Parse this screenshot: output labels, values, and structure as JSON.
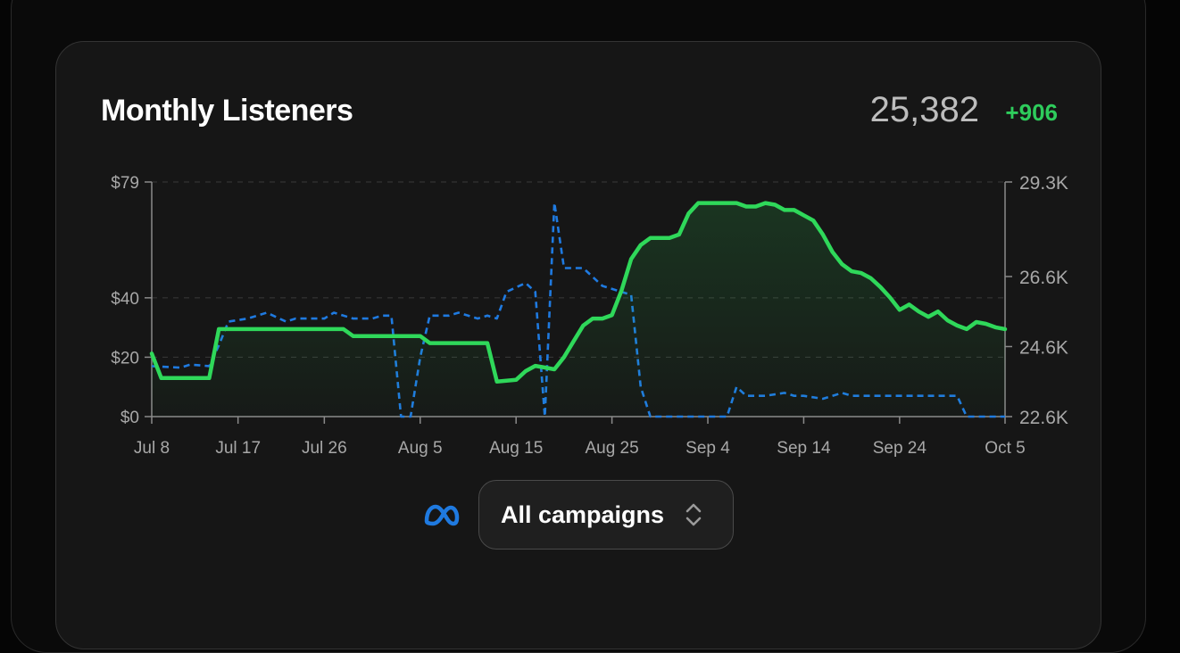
{
  "card": {
    "title": "Monthly Listeners",
    "value": "25,382",
    "delta": "+906"
  },
  "colors": {
    "listeners_line": "#2fd85a",
    "spend_line": "#1f7ae0",
    "delta_text": "#2ecc5c"
  },
  "controls": {
    "platform_icon": "meta-icon",
    "campaign_label": "All campaigns",
    "selector_icon": "chevron-up-down-icon"
  },
  "chart_data": {
    "type": "line",
    "x_ticks": [
      "Jul 8",
      "Jul 17",
      "Jul 26",
      "Aug 5",
      "Aug 15",
      "Aug 25",
      "Sep 4",
      "Sep 14",
      "Sep 24",
      "Oct 5"
    ],
    "y_left_ticks": [
      "$0",
      "$20",
      "$40",
      "$79"
    ],
    "y_right_ticks": [
      "22.6K",
      "24.6K",
      "26.6K",
      "29.3K"
    ],
    "y_left_range": [
      0,
      79
    ],
    "y_right_range": [
      22600,
      29300
    ],
    "grid": "dashed horizontal",
    "series": [
      {
        "axis": "right",
        "style": "solid",
        "points": [
          [
            "Jul 8",
            24400
          ],
          [
            "Jul 9",
            23700
          ],
          [
            "Jul 10",
            23700
          ],
          [
            "Jul 12",
            23700
          ],
          [
            "Jul 14",
            23700
          ],
          [
            "Jul 15",
            25100
          ],
          [
            "Jul 17",
            25100
          ],
          [
            "Jul 20",
            25100
          ],
          [
            "Jul 23",
            25100
          ],
          [
            "Jul 26",
            25100
          ],
          [
            "Jul 28",
            25100
          ],
          [
            "Jul 29",
            24900
          ],
          [
            "Aug 1",
            24900
          ],
          [
            "Aug 4",
            24900
          ],
          [
            "Aug 5",
            24900
          ],
          [
            "Aug 6",
            24700
          ],
          [
            "Aug 9",
            24700
          ],
          [
            "Aug 12",
            24700
          ],
          [
            "Aug 13",
            23600
          ],
          [
            "Aug 15",
            23650
          ],
          [
            "Aug 16",
            23900
          ],
          [
            "Aug 17",
            24050
          ],
          [
            "Aug 18",
            24000
          ],
          [
            "Aug 19",
            23950
          ],
          [
            "Aug 20",
            24300
          ],
          [
            "Aug 21",
            24750
          ],
          [
            "Aug 22",
            25200
          ],
          [
            "Aug 23",
            25400
          ],
          [
            "Aug 24",
            25400
          ],
          [
            "Aug 25",
            25500
          ],
          [
            "Aug 26",
            26200
          ],
          [
            "Aug 27",
            27100
          ],
          [
            "Aug 28",
            27500
          ],
          [
            "Aug 29",
            27700
          ],
          [
            "Aug 31",
            27700
          ],
          [
            "Sep 1",
            27800
          ],
          [
            "Sep 2",
            28400
          ],
          [
            "Sep 3",
            28700
          ],
          [
            "Sep 5",
            28700
          ],
          [
            "Sep 7",
            28700
          ],
          [
            "Sep 8",
            28600
          ],
          [
            "Sep 9",
            28600
          ],
          [
            "Sep 10",
            28700
          ],
          [
            "Sep 11",
            28650
          ],
          [
            "Sep 12",
            28500
          ],
          [
            "Sep 13",
            28500
          ],
          [
            "Sep 14",
            28350
          ],
          [
            "Sep 15",
            28200
          ],
          [
            "Sep 16",
            27800
          ],
          [
            "Sep 17",
            27300
          ],
          [
            "Sep 18",
            26950
          ],
          [
            "Sep 19",
            26750
          ],
          [
            "Sep 20",
            26700
          ],
          [
            "Sep 21",
            26550
          ],
          [
            "Sep 22",
            26300
          ],
          [
            "Sep 23",
            26000
          ],
          [
            "Sep 24",
            25650
          ],
          [
            "Sep 25",
            25800
          ],
          [
            "Sep 26",
            25600
          ],
          [
            "Sep 27",
            25450
          ],
          [
            "Sep 28",
            25600
          ],
          [
            "Sep 29",
            25350
          ],
          [
            "Sep 30",
            25200
          ],
          [
            "Oct 1",
            25100
          ],
          [
            "Oct 2",
            25300
          ],
          [
            "Oct 3",
            25250
          ],
          [
            "Oct 4",
            25150
          ],
          [
            "Oct 5",
            25100
          ]
        ]
      },
      {
        "axis": "left",
        "style": "dashed",
        "points": [
          [
            "Jul 8",
            17
          ],
          [
            "Jul 11",
            16.5
          ],
          [
            "Jul 12",
            17.5
          ],
          [
            "Jul 14",
            17
          ],
          [
            "Jul 15",
            24
          ],
          [
            "Jul 16",
            32
          ],
          [
            "Jul 18",
            33
          ],
          [
            "Jul 20",
            35
          ],
          [
            "Jul 22",
            32
          ],
          [
            "Jul 23",
            33
          ],
          [
            "Jul 26",
            33
          ],
          [
            "Jul 27",
            35
          ],
          [
            "Jul 29",
            33
          ],
          [
            "Jul 31",
            33
          ],
          [
            "Aug 1",
            34
          ],
          [
            "Aug 2",
            34
          ],
          [
            "Aug 3",
            0
          ],
          [
            "Aug 4",
            0
          ],
          [
            "Aug 5",
            20
          ],
          [
            "Aug 6",
            34
          ],
          [
            "Aug 8",
            34
          ],
          [
            "Aug 9",
            35
          ],
          [
            "Aug 11",
            33
          ],
          [
            "Aug 12",
            34
          ],
          [
            "Aug 13",
            33
          ],
          [
            "Aug 14",
            42
          ],
          [
            "Aug 16",
            45
          ],
          [
            "Aug 17",
            42
          ],
          [
            "Aug 18",
            0
          ],
          [
            "Aug 19",
            72
          ],
          [
            "Aug 20",
            50
          ],
          [
            "Aug 22",
            50
          ],
          [
            "Aug 24",
            44
          ],
          [
            "Aug 26",
            42
          ],
          [
            "Aug 27",
            41
          ],
          [
            "Aug 28",
            10
          ],
          [
            "Aug 29",
            0
          ],
          [
            "Sep 1",
            0
          ],
          [
            "Sep 4",
            0
          ],
          [
            "Sep 6",
            0
          ],
          [
            "Sep 7",
            10
          ],
          [
            "Sep 8",
            7
          ],
          [
            "Sep 10",
            7
          ],
          [
            "Sep 12",
            8
          ],
          [
            "Sep 13",
            7
          ],
          [
            "Sep 14",
            7
          ],
          [
            "Sep 16",
            6
          ],
          [
            "Sep 17",
            7
          ],
          [
            "Sep 18",
            8
          ],
          [
            "Sep 19",
            7
          ],
          [
            "Sep 20",
            7
          ],
          [
            "Sep 22",
            7
          ],
          [
            "Sep 24",
            7
          ],
          [
            "Sep 26",
            7
          ],
          [
            "Sep 29",
            7
          ],
          [
            "Sep 30",
            7
          ],
          [
            "Oct 1",
            0
          ],
          [
            "Oct 5",
            0
          ]
        ]
      }
    ]
  }
}
